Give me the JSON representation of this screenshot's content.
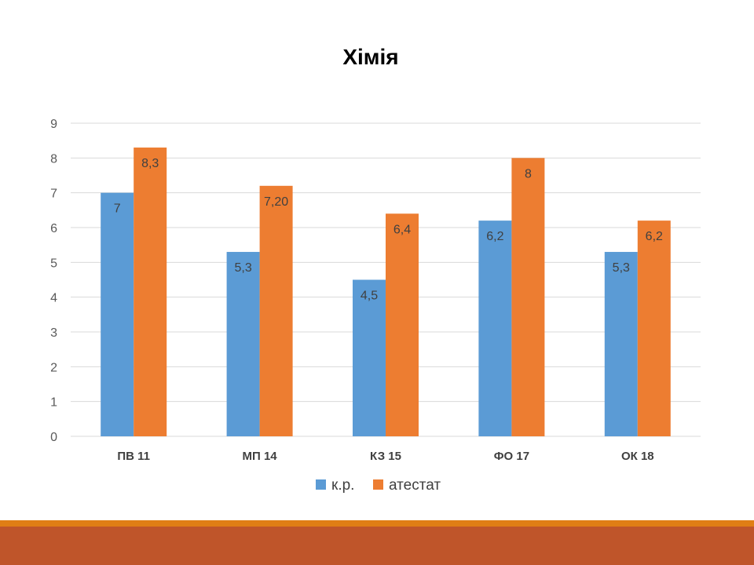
{
  "chart_data": {
    "type": "bar",
    "title": "Хімія",
    "categories": [
      "ПВ 11",
      "МП 14",
      "КЗ 15",
      "ФО 17",
      "ОК 18"
    ],
    "series": [
      {
        "name": "к.р.",
        "values": [
          7,
          5.3,
          4.5,
          6.2,
          5.3
        ],
        "labels": [
          "7",
          "5,3",
          "4,5",
          "6,2",
          "5,3"
        ],
        "color": "#5b9bd5"
      },
      {
        "name": "атестат",
        "values": [
          8.3,
          7.2,
          6.4,
          8,
          6.2
        ],
        "labels": [
          "8,3",
          "7,20",
          "6,4",
          "8",
          "6,2"
        ],
        "color": "#ed7d31"
      }
    ],
    "ylim": [
      0,
      9
    ],
    "yticks": [
      0,
      1,
      2,
      3,
      4,
      5,
      6,
      7,
      8,
      9
    ],
    "grid": true,
    "legend": "bottom"
  },
  "theme": {
    "footer_stripe_color": "#e07e15",
    "footer_band_color": "#bf552a",
    "grid_color": "#d9d9d9"
  }
}
